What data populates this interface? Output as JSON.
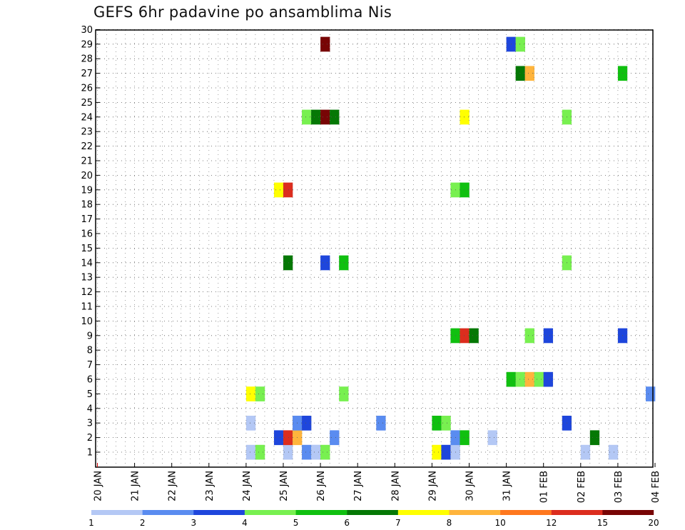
{
  "chart_data": {
    "type": "heatmap",
    "title": "GEFS 6hr padavine po ansamblima Nis",
    "xlabel": "",
    "ylabel": "",
    "y_ticks": [
      "1",
      "2",
      "3",
      "4",
      "5",
      "6",
      "7",
      "8",
      "9",
      "10",
      "11",
      "12",
      "13",
      "14",
      "15",
      "16",
      "17",
      "18",
      "19",
      "20",
      "21",
      "22",
      "23",
      "24",
      "25",
      "26",
      "27",
      "28",
      "29",
      "30"
    ],
    "x_ticks": [
      "20 JAN",
      "21 JAN",
      "22 JAN",
      "23 JAN",
      "24 JAN",
      "25 JAN",
      "26 JAN",
      "27 JAN",
      "28 JAN",
      "29 JAN",
      "30 JAN",
      "31 JAN",
      "01 FEB",
      "02 FEB",
      "03 FEB",
      "04 FEB"
    ],
    "grid": true,
    "colorbar": {
      "levels": [
        1,
        2,
        3,
        4,
        5,
        6,
        7,
        8,
        10,
        12,
        15,
        20
      ],
      "colors": [
        "#b4c8f5",
        "#5a8cf0",
        "#1e46dc",
        "#78f050",
        "#10c010",
        "#057805",
        "#ffff00",
        "#ffb43c",
        "#ff781e",
        "#dc2d1e",
        "#780505"
      ],
      "labels": [
        "1",
        "2",
        "3",
        "4",
        "5",
        "6",
        "7",
        "8",
        "10",
        "12",
        "15",
        "20"
      ]
    },
    "cells": [
      {
        "member": 1,
        "t": "2021-01-24T00",
        "v": 1.5
      },
      {
        "member": 1,
        "t": "2021-01-24T06",
        "v": 4.5
      },
      {
        "member": 1,
        "t": "2021-01-25T00",
        "v": 1.5
      },
      {
        "member": 1,
        "t": "2021-01-25T18",
        "v": 1.5
      },
      {
        "member": 1,
        "t": "2021-01-25T12",
        "v": 2.5
      },
      {
        "member": 1,
        "t": "2021-01-25T18",
        "v": 1.5
      },
      {
        "member": 1,
        "t": "2021-01-26T00",
        "v": 4.5
      },
      {
        "member": 1,
        "t": "2021-01-29T00",
        "v": 7.5
      },
      {
        "member": 1,
        "t": "2021-01-29T06",
        "v": 3.5
      },
      {
        "member": 1,
        "t": "2021-01-29T12",
        "v": 1.5
      },
      {
        "member": 1,
        "t": "2021-02-02T00",
        "v": 1.5
      },
      {
        "member": 1,
        "t": "2021-02-02T18",
        "v": 1.5
      },
      {
        "member": 2,
        "t": "2021-01-24T18",
        "v": 3.5
      },
      {
        "member": 2,
        "t": "2021-01-25T00",
        "v": 12.5
      },
      {
        "member": 2,
        "t": "2021-01-25T06",
        "v": 9
      },
      {
        "member": 2,
        "t": "2021-01-26T06",
        "v": 2.5
      },
      {
        "member": 2,
        "t": "2021-01-29T12",
        "v": 2.5
      },
      {
        "member": 2,
        "t": "2021-01-29T18",
        "v": 5.5
      },
      {
        "member": 2,
        "t": "2021-01-30T12",
        "v": 1.5
      },
      {
        "member": 2,
        "t": "2021-02-02T06",
        "v": 6.5
      },
      {
        "member": 3,
        "t": "2021-01-24T00",
        "v": 1.5
      },
      {
        "member": 3,
        "t": "2021-01-25T06",
        "v": 2.5
      },
      {
        "member": 3,
        "t": "2021-01-25T12",
        "v": 3.5
      },
      {
        "member": 3,
        "t": "2021-01-27T12",
        "v": 2.5
      },
      {
        "member": 3,
        "t": "2021-01-29T00",
        "v": 5.5
      },
      {
        "member": 3,
        "t": "2021-01-29T06",
        "v": 4.5
      },
      {
        "member": 3,
        "t": "2021-02-01T12",
        "v": 3.5
      },
      {
        "member": 3,
        "t": "2021-02-04T00",
        "v": 2.5
      },
      {
        "member": 5,
        "t": "2021-01-24T00",
        "v": 7.5
      },
      {
        "member": 5,
        "t": "2021-01-24T06",
        "v": 4.5
      },
      {
        "member": 5,
        "t": "2021-01-26T12",
        "v": 4.5
      },
      {
        "member": 5,
        "t": "2021-02-03T18",
        "v": 2.5
      },
      {
        "member": 6,
        "t": "2021-01-31T00",
        "v": 5.5
      },
      {
        "member": 6,
        "t": "2021-01-31T06",
        "v": 4.5
      },
      {
        "member": 6,
        "t": "2021-01-31T12",
        "v": 9
      },
      {
        "member": 6,
        "t": "2021-01-31T18",
        "v": 4.5
      },
      {
        "member": 6,
        "t": "2021-02-01T00",
        "v": 3.5
      },
      {
        "member": 9,
        "t": "2021-01-29T12",
        "v": 5.5
      },
      {
        "member": 9,
        "t": "2021-01-29T18",
        "v": 12.5
      },
      {
        "member": 9,
        "t": "2021-01-30T00",
        "v": 6.5
      },
      {
        "member": 9,
        "t": "2021-01-31T12",
        "v": 4.5
      },
      {
        "member": 9,
        "t": "2021-02-01T00",
        "v": 3.5
      },
      {
        "member": 9,
        "t": "2021-02-03T00",
        "v": 3.5
      },
      {
        "member": 14,
        "t": "2021-01-25T00",
        "v": 6.5
      },
      {
        "member": 14,
        "t": "2021-01-26T00",
        "v": 3.5
      },
      {
        "member": 14,
        "t": "2021-01-26T12",
        "v": 5.5
      },
      {
        "member": 14,
        "t": "2021-02-01T12",
        "v": 4.5
      },
      {
        "member": 19,
        "t": "2021-01-24T18",
        "v": 7.5
      },
      {
        "member": 19,
        "t": "2021-01-25T00",
        "v": 12.5
      },
      {
        "member": 19,
        "t": "2021-01-29T12",
        "v": 4.5
      },
      {
        "member": 19,
        "t": "2021-01-29T18",
        "v": 5.5
      },
      {
        "member": 24,
        "t": "2021-01-25T12",
        "v": 4.5
      },
      {
        "member": 24,
        "t": "2021-01-25T18",
        "v": 6.5
      },
      {
        "member": 24,
        "t": "2021-01-26T00",
        "v": 20
      },
      {
        "member": 24,
        "t": "2021-01-26T06",
        "v": 6.5
      },
      {
        "member": 24,
        "t": "2021-01-29T18",
        "v": 7.5
      },
      {
        "member": 24,
        "t": "2021-02-01T12",
        "v": 4.5
      },
      {
        "member": 27,
        "t": "2021-01-31T06",
        "v": 6.5
      },
      {
        "member": 27,
        "t": "2021-01-31T12",
        "v": 9
      },
      {
        "member": 27,
        "t": "2021-02-03T00",
        "v": 5.5
      },
      {
        "member": 29,
        "t": "2021-01-26T00",
        "v": 20
      },
      {
        "member": 29,
        "t": "2021-01-31T00",
        "v": 3.5
      },
      {
        "member": 29,
        "t": "2021-01-31T06",
        "v": 4.5
      }
    ]
  }
}
